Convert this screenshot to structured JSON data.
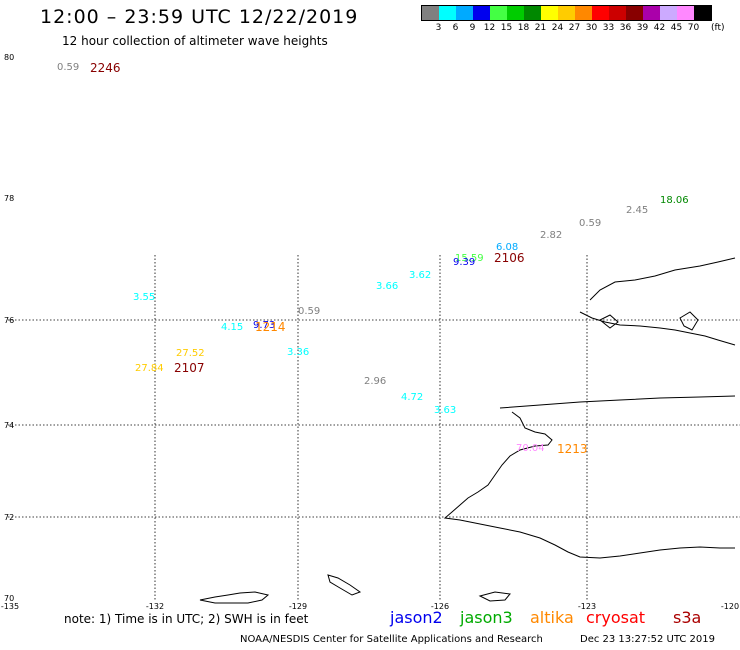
{
  "header": {
    "title": "12:00 – 23:59 UTC 12/22/2019",
    "subtitle": "12 hour collection of altimeter wave heights"
  },
  "legend": {
    "unit": "(ft)",
    "bins": [
      {
        "label": "3",
        "color": "#808080"
      },
      {
        "label": "6",
        "color": "#00ffff"
      },
      {
        "label": "9",
        "color": "#00aaff"
      },
      {
        "label": "12",
        "color": "#0000ee"
      },
      {
        "label": "15",
        "color": "#44ff44"
      },
      {
        "label": "18",
        "color": "#00cc00"
      },
      {
        "label": "21",
        "color": "#008800"
      },
      {
        "label": "24",
        "color": "#ffff00"
      },
      {
        "label": "27",
        "color": "#ffcc00"
      },
      {
        "label": "30",
        "color": "#ff8800"
      },
      {
        "label": "33",
        "color": "#ff0000"
      },
      {
        "label": "36",
        "color": "#cc0000"
      },
      {
        "label": "39",
        "color": "#880000"
      },
      {
        "label": "42",
        "color": "#aa00aa"
      },
      {
        "label": "45",
        "color": "#ccaaff"
      },
      {
        "label": "70",
        "color": "#ff88ff"
      },
      {
        "label": "",
        "color": "#000000"
      }
    ]
  },
  "map": {
    "lat_ticks": [
      "80",
      "78",
      "76",
      "74",
      "72",
      "70"
    ],
    "lon_ticks": [
      "-135",
      "-132",
      "-129",
      "-126",
      "-123",
      "-120"
    ]
  },
  "observations": [
    {
      "value": "0.59",
      "color": "#808080"
    },
    {
      "value": "18.06",
      "color": "#008800"
    },
    {
      "value": "2.45",
      "color": "#808080"
    },
    {
      "value": "0.59",
      "color": "#808080"
    },
    {
      "value": "2.82",
      "color": "#808080"
    },
    {
      "value": "6.08",
      "color": "#00aaff"
    },
    {
      "value": "15.59",
      "color": "#44ff44"
    },
    {
      "value": "9.39",
      "color": "#0000ee"
    },
    {
      "value": "3.62",
      "color": "#00ffff"
    },
    {
      "value": "3.66",
      "color": "#00ffff"
    },
    {
      "value": "3.55",
      "color": "#00ffff"
    },
    {
      "value": "0.59",
      "color": "#808080"
    },
    {
      "value": "4.15",
      "color": "#00ffff"
    },
    {
      "value": "9.73",
      "color": "#0000ee"
    },
    {
      "value": "27.52",
      "color": "#ffcc00"
    },
    {
      "value": "3.36",
      "color": "#00ffff"
    },
    {
      "value": "27.84",
      "color": "#ffcc00"
    },
    {
      "value": "2.96",
      "color": "#808080"
    },
    {
      "value": "4.72",
      "color": "#00ffff"
    },
    {
      "value": "3.63",
      "color": "#00ffff"
    },
    {
      "value": "70.04",
      "color": "#ff88ff"
    }
  ],
  "pass_times": [
    {
      "value": "2246",
      "color": "#880000"
    },
    {
      "value": "2106",
      "color": "#880000"
    },
    {
      "value": "2107",
      "color": "#880000"
    },
    {
      "value": "1214",
      "color": "#ff8800"
    },
    {
      "value": "1213",
      "color": "#ff8800"
    }
  ],
  "footer": {
    "note": "note: 1) Time is in UTC; 2) SWH is in feet",
    "satellites": [
      {
        "name": "jason2",
        "color": "#0000ee"
      },
      {
        "name": "jason3",
        "color": "#00aa00"
      },
      {
        "name": "altika",
        "color": "#ff8800"
      },
      {
        "name": "cryosat",
        "color": "#ff0000"
      },
      {
        "name": "s3a",
        "color": "#aa0000"
      }
    ],
    "credit": "NOAA/NESDIS Center for Satellite Applications and Research",
    "timestamp": "Dec 23 13:27:52 UTC 2019"
  }
}
